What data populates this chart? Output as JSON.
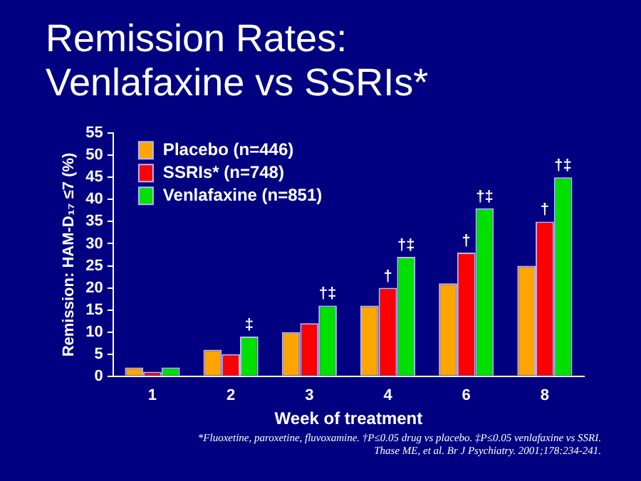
{
  "chart_data": {
    "type": "bar",
    "title": "Remission Rates:\nVenlafaxine vs SSRIs*",
    "xlabel": "Week of treatment",
    "ylabel": "Remission: HAM-D₁₇ ≤7 (%)",
    "categories": [
      "1",
      "2",
      "3",
      "4",
      "6",
      "8"
    ],
    "series": [
      {
        "name": "Placebo (n=446)",
        "color": "#ffa500",
        "values": [
          2,
          6,
          10,
          16,
          21,
          25
        ]
      },
      {
        "name": "SSRIs* (n=748)",
        "color": "#ff0000",
        "values": [
          1,
          5,
          12,
          20,
          28,
          35
        ],
        "value_labels": [
          null,
          null,
          null,
          "†",
          "†",
          "†"
        ]
      },
      {
        "name": "Venlafaxine (n=851)",
        "color": "#00e000",
        "values": [
          2,
          9,
          16,
          27,
          38,
          45
        ],
        "value_labels": [
          null,
          "‡",
          "†‡",
          "†‡",
          "†‡",
          "†‡"
        ]
      }
    ],
    "ylim": [
      0,
      55
    ],
    "yticks": [
      0,
      5,
      10,
      15,
      20,
      25,
      30,
      35,
      40,
      45,
      50,
      55
    ],
    "grid": false,
    "legend": "top left",
    "annotations": [
      "*Fluoxetine, paroxetine, fluvoxamine. †P≤0.05 drug vs placebo. ‡P≤0.05 venlafaxine vs SSRI.\nThase ME, et al. Br J Psychiatry. 2001;178:234-241."
    ]
  }
}
